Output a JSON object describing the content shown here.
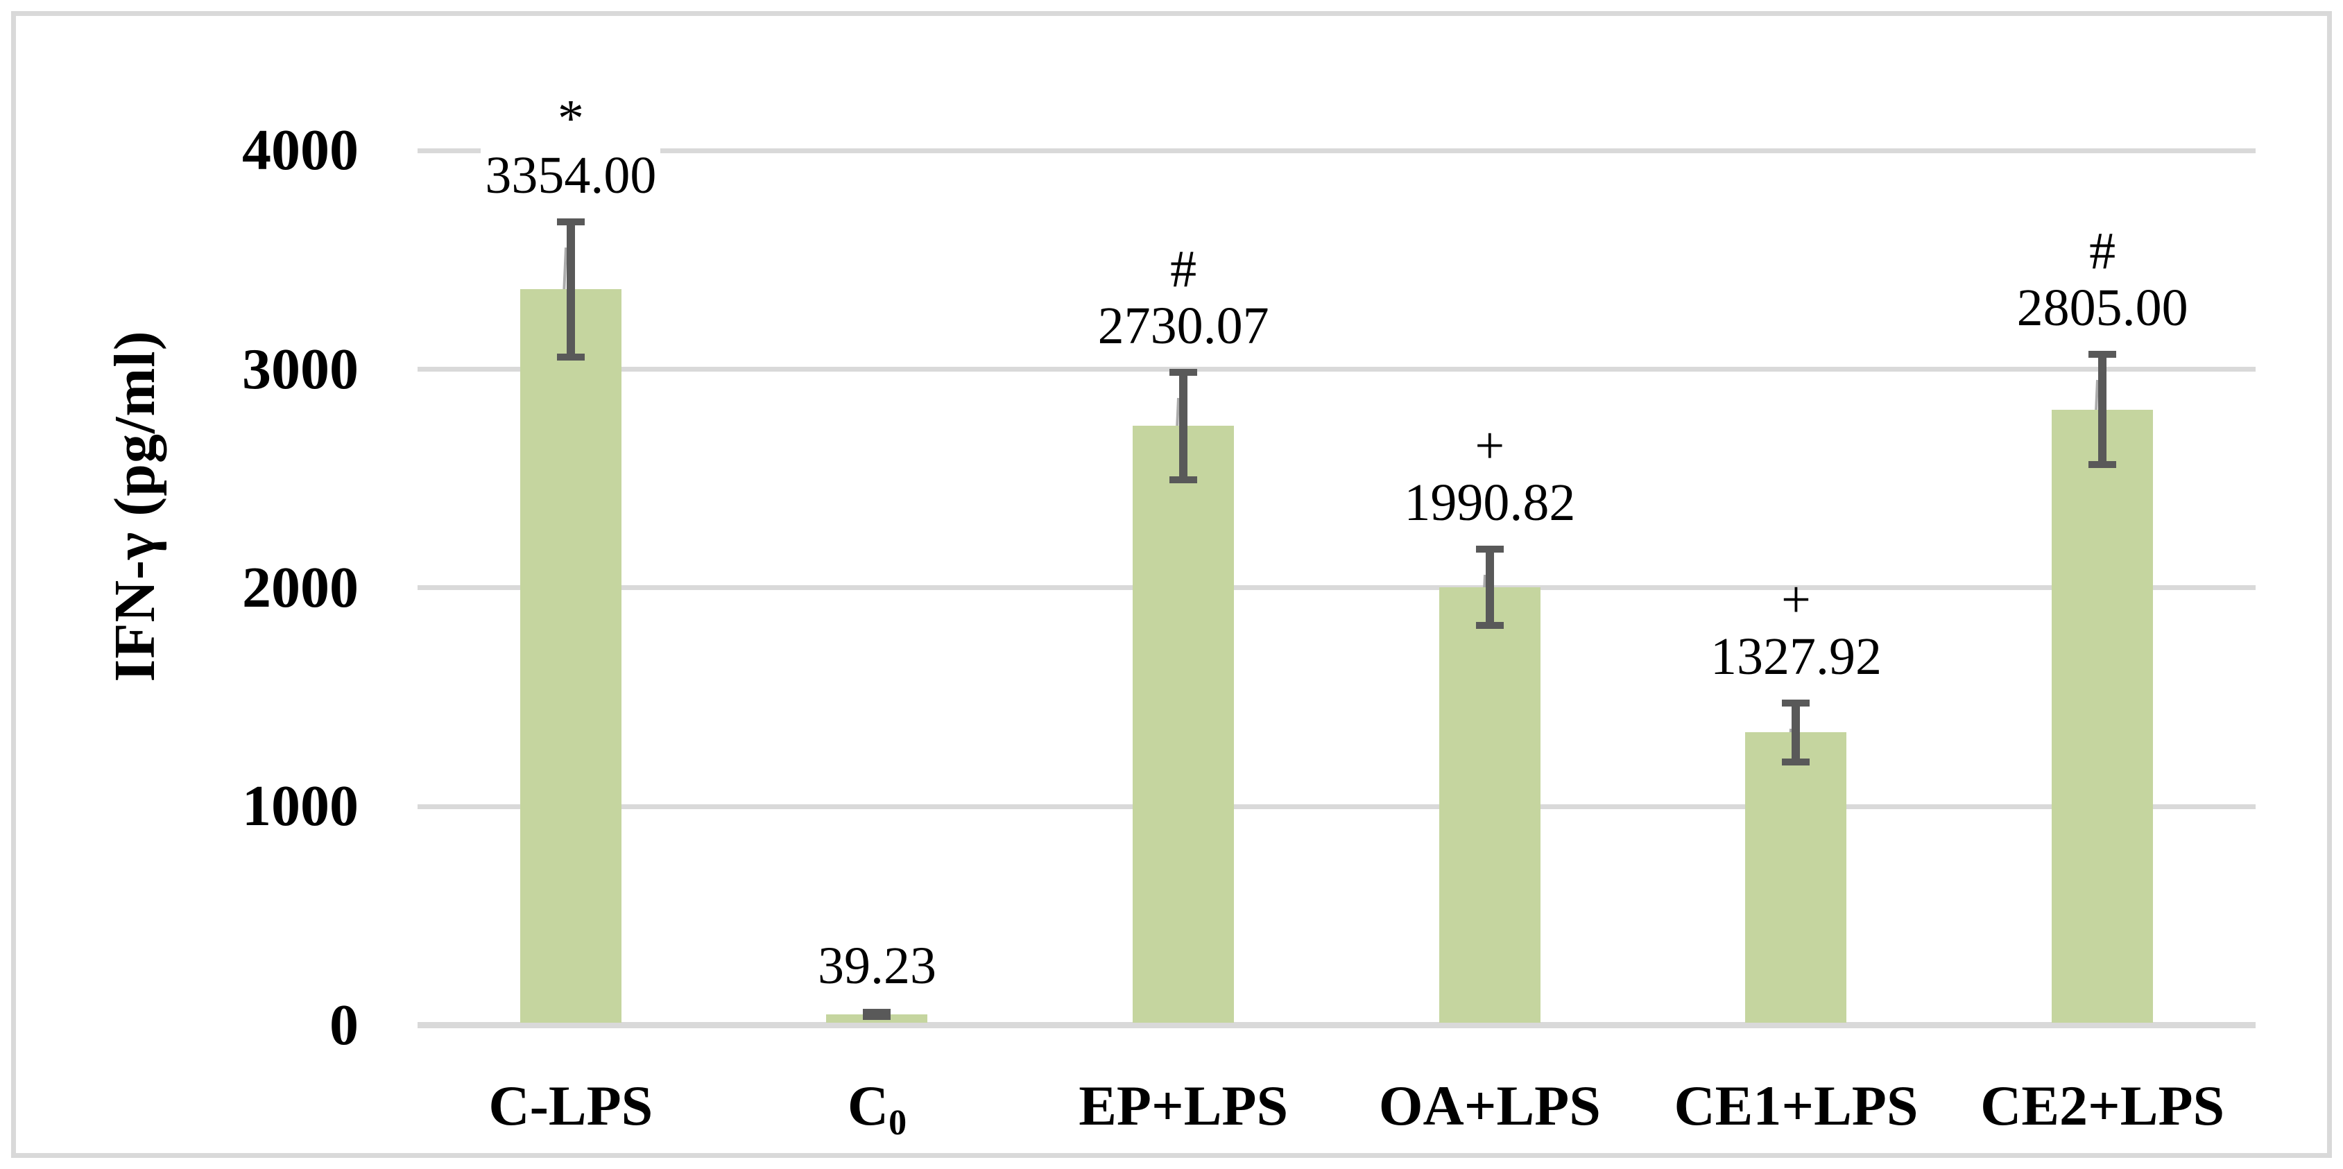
{
  "chart_data": {
    "type": "bar",
    "title": "",
    "xlabel": "",
    "ylabel": "IFN-γ (pg/ml)",
    "ylim": [
      0,
      4000
    ],
    "y_ticks": [
      4000,
      3000,
      2000,
      1000,
      0
    ],
    "grid": "horizontal",
    "legend": "none",
    "bar_color": "#c5d59f",
    "error_bar_color": "#595959",
    "gridline_color": "#d9d9d9",
    "frame_color": "#d9d9d9",
    "categories": [
      "C-LPS",
      "C0",
      "EP+LPS",
      "OA+LPS",
      "CE1+LPS",
      "CE2+LPS"
    ],
    "values": [
      3354.0,
      39.23,
      2730.07,
      1990.82,
      1327.92,
      2805.0
    ],
    "bars": [
      {
        "category": "C-LPS",
        "cat_sub": "",
        "value": 3354.0,
        "value_label": "3354.00",
        "annotation": "*",
        "error": 325
      },
      {
        "category": "C",
        "cat_sub": "0",
        "value": 39.23,
        "value_label": "39.23",
        "annotation": "",
        "error": 25
      },
      {
        "category": "EP+LPS",
        "cat_sub": "",
        "value": 2730.07,
        "value_label": "2730.07",
        "annotation": "#",
        "error": 262
      },
      {
        "category": "OA+LPS",
        "cat_sub": "",
        "value": 1990.82,
        "value_label": "1990.82",
        "annotation": "+",
        "error": 190
      },
      {
        "category": "CE1+LPS",
        "cat_sub": "",
        "value": 1327.92,
        "value_label": "1327.92",
        "annotation": "+",
        "error": 150
      },
      {
        "category": "CE2+LPS",
        "cat_sub": "",
        "value": 2805.0,
        "value_label": "2805.00",
        "annotation": "#",
        "error": 268
      }
    ]
  }
}
